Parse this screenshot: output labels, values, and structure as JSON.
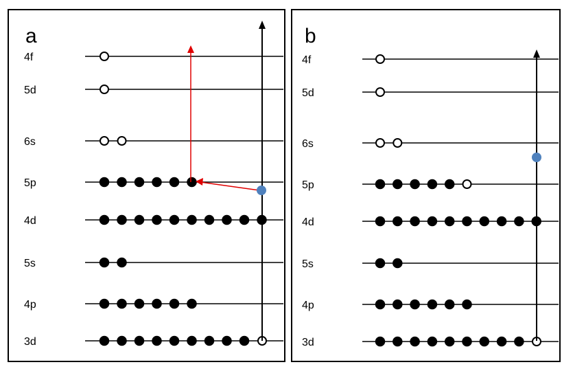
{
  "panels": [
    {
      "label": "a",
      "levels": [
        {
          "label": "4f",
          "filled": 0,
          "empty": 1,
          "hole_at_end": false
        },
        {
          "label": "5d",
          "filled": 0,
          "empty": 1,
          "hole_at_end": false
        },
        {
          "label": "6s",
          "filled": 0,
          "empty": 2,
          "hole_at_end": false
        },
        {
          "label": "5p",
          "filled": 6,
          "empty": 0,
          "hole_at_end": false
        },
        {
          "label": "4d",
          "filled": 10,
          "empty": 0,
          "hole_at_end": false
        },
        {
          "label": "5s",
          "filled": 2,
          "empty": 0,
          "hole_at_end": false
        },
        {
          "label": "4p",
          "filled": 6,
          "empty": 0,
          "hole_at_end": false
        },
        {
          "label": "3d",
          "filled": 9,
          "empty": 0,
          "hole_at_end": true
        }
      ],
      "colors": {
        "electron": "#000000",
        "hole": "#ffffff",
        "free_electron": "#4f81bd",
        "transition_arrow": "#e00000",
        "axis": "#000000"
      }
    },
    {
      "label": "b",
      "levels": [
        {
          "label": "4f",
          "filled": 0,
          "empty": 1,
          "hole_at_end": false
        },
        {
          "label": "5d",
          "filled": 0,
          "empty": 1,
          "hole_at_end": false
        },
        {
          "label": "6s",
          "filled": 0,
          "empty": 2,
          "hole_at_end": false
        },
        {
          "label": "5p",
          "filled": 5,
          "empty": 1,
          "hole_at_end": false
        },
        {
          "label": "4d",
          "filled": 10,
          "empty": 0,
          "hole_at_end": false
        },
        {
          "label": "5s",
          "filled": 2,
          "empty": 0,
          "hole_at_end": false
        },
        {
          "label": "4p",
          "filled": 6,
          "empty": 0,
          "hole_at_end": false
        },
        {
          "label": "3d",
          "filled": 9,
          "empty": 0,
          "hole_at_end": true
        }
      ],
      "colors": {
        "electron": "#000000",
        "hole": "#ffffff",
        "free_electron": "#4f81bd",
        "transition_arrow": "#e00000",
        "axis": "#000000"
      }
    }
  ]
}
